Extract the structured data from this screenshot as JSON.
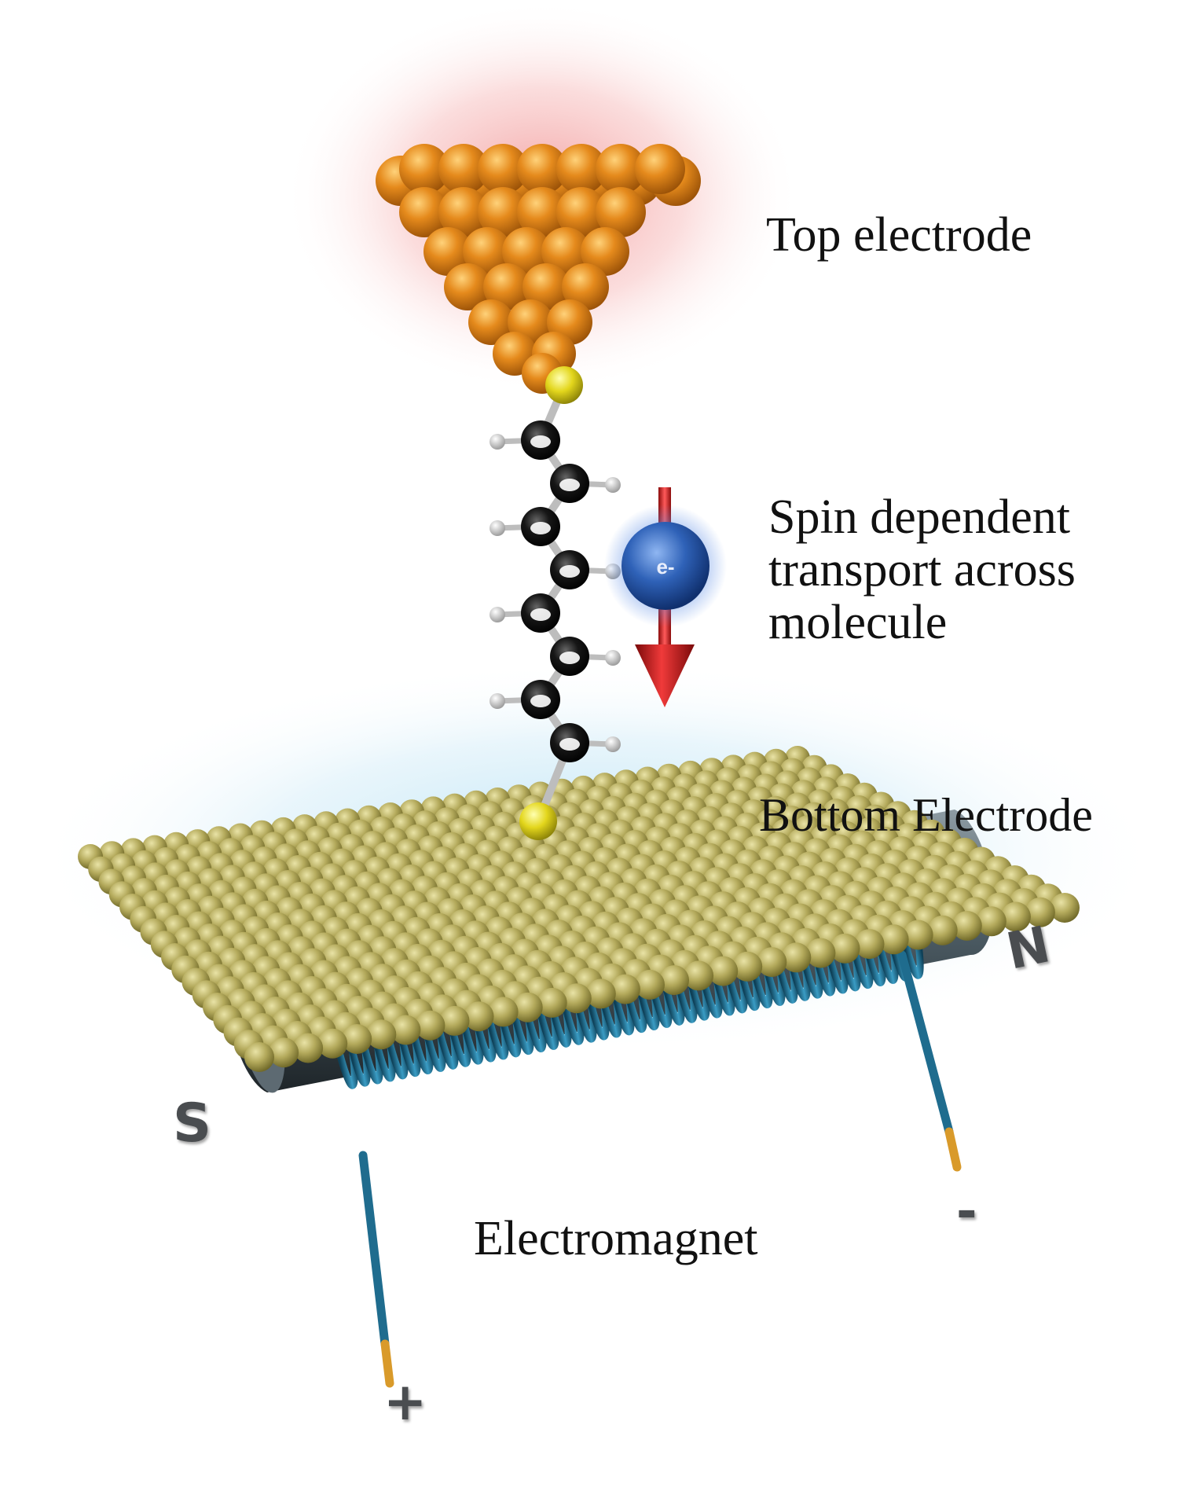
{
  "labels": {
    "top_electrode": "Top electrode",
    "spin_transport": [
      "Spin dependent",
      "transport across",
      "molecule"
    ],
    "bottom_electrode": "Bottom Electrode",
    "electromagnet": "Electromagnet"
  },
  "electron": {
    "symbol": "e-"
  },
  "magnet": {
    "south": "S",
    "north": "N",
    "plus": "+",
    "minus": "-"
  },
  "colors": {
    "top_electrode_atom": "#e08a1a",
    "top_glow": "#f4a8a8",
    "bottom_electrode_atom": "#b3a95a",
    "bottom_glow": "#bfe6f5",
    "sulfur": "#e8e020",
    "carbon": "#111111",
    "hydrogen": "#dddddd",
    "electron": "#2e62b8",
    "spin_arrow": "#cc1a1a",
    "coil": "#1f6c8e",
    "core": "#4b5a62",
    "wire_tip": "#d99a2a"
  }
}
